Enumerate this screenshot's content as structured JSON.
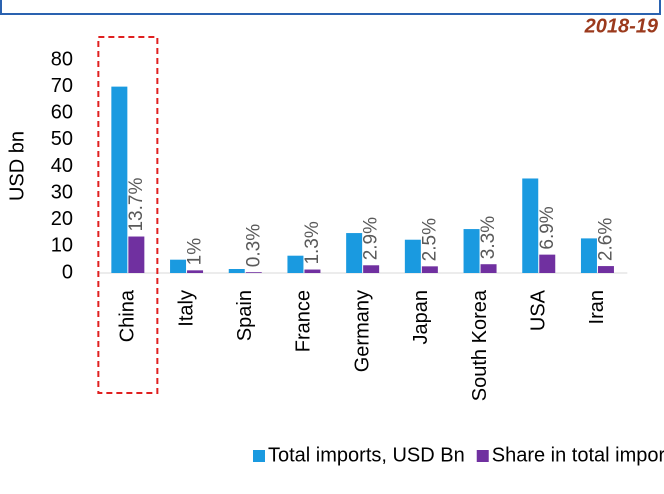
{
  "chart_data": {
    "type": "bar",
    "subtitle": "2018-19",
    "y_label": "USD bn",
    "categories": [
      "China",
      "Italy",
      "Spain",
      "France",
      "Germany",
      "Japan",
      "South Korea",
      "USA",
      "Iran"
    ],
    "series": [
      {
        "name": "Total imports, USD Bn",
        "color": "#1a9ae0",
        "values": [
          70,
          5,
          1.5,
          6.5,
          15,
          12.5,
          16.5,
          35.5,
          13
        ]
      },
      {
        "name": "Share in total imports, %",
        "color": "#7030a0",
        "values": [
          13.7,
          1,
          0.3,
          1.3,
          2.9,
          2.5,
          3.3,
          6.9,
          2.6
        ],
        "value_labels": [
          "13.7%",
          "1%",
          "0.3%",
          "1.3%",
          "2.9%",
          "2.5%",
          "3.3%",
          "6.9%",
          "2.6%"
        ]
      }
    ],
    "ylim": [
      0,
      80
    ],
    "yticks": [
      0,
      10,
      20,
      30,
      40,
      50,
      60,
      70,
      80
    ],
    "legend": "bottom",
    "highlight": "China"
  }
}
